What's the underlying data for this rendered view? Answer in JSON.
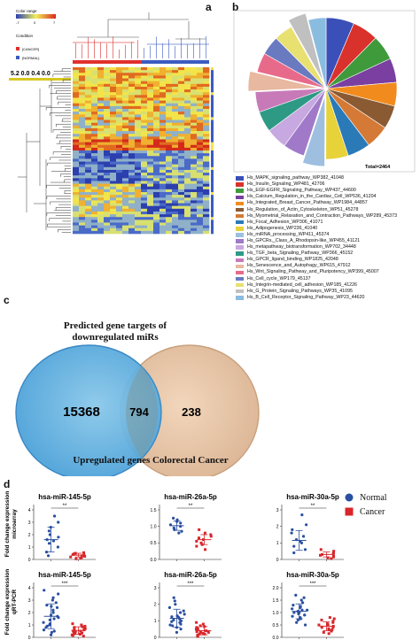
{
  "panels": {
    "a": {
      "letter": "a",
      "color_range_label": "Color range",
      "color_range_ticks": [
        "-7",
        "0",
        "7"
      ],
      "condition_label": "Condition",
      "condition_items": [
        {
          "label": "[CANCER]",
          "color": "#e0302c"
        },
        {
          "label": "[NORMAL]",
          "color": "#3a5bc0"
        }
      ],
      "scale_text": "5.2 0.0  0.4 0.0"
    },
    "b": {
      "letter": "b",
      "total_label": "Total=2464",
      "pathways": [
        {
          "label": "Hs_MAPK_signaling_pathway_WP382_41048",
          "color": "#3b4fb8"
        },
        {
          "label": "Hs_Insulin_Signaling_WP481_42706",
          "color": "#d9312b"
        },
        {
          "label": "Hs_EGF-EGFR_Signaling_Pathway_WP437_44600",
          "color": "#3f9a3c"
        },
        {
          "label": "Hs_Calcium_Regulation_in_the_Cardiac_Cell_WP536_41204",
          "color": "#7a3fa0"
        },
        {
          "label": "Hs_Integrated_Breast_Cancer_Pathway_WP1984_44857",
          "color": "#f28b1e"
        },
        {
          "label": "Hs_Regulation_of_Actin_Cytoskeleton_WP51_45278",
          "color": "#8a5a32"
        },
        {
          "label": "Hs_Myometrial_Relaxation_and_Contraction_Pathways_WP289_45373",
          "color": "#d47a36"
        },
        {
          "label": "Hs_Focal_Adhesion_WP306_41071",
          "color": "#2a7ab8"
        },
        {
          "label": "Hs_Adipogenesis_WP236_41040",
          "color": "#e7d23a"
        },
        {
          "label": "Hs_miRNA_processing_WP411_45374",
          "color": "#9fbfe0"
        },
        {
          "label": "Hs_GPCRs,_Class_A_Rhodopsin-like_WP455_41121",
          "color": "#a07ac8"
        },
        {
          "label": "Hs_metapathway_biotransformation_WP702_34448",
          "color": "#c8a8e0"
        },
        {
          "label": "Hs_TGF_beta_Signaling_Pathway_WP366_45152",
          "color": "#2e9a86"
        },
        {
          "label": "Hs_GPCR_ligand_binding_WP1825_42048",
          "color": "#c87ab8"
        },
        {
          "label": "Hs_Senescence_and_Autophagy_WP615_47912",
          "color": "#e8b8a0"
        },
        {
          "label": "Hs_Wnt_Signaling_Pathway_and_Pluripotency_WP399_45007",
          "color": "#e86a8a"
        },
        {
          "label": "Hs_Cell_cycle_WP179_45137",
          "color": "#6a7ac0"
        },
        {
          "label": "Hs_Integrin-mediated_cell_adhesion_WP185_41226",
          "color": "#e8e070"
        },
        {
          "label": "Hs_G_Protein_Signaling_Pathways_WP35_41095",
          "color": "#c0c0c0"
        },
        {
          "label": "Hs_B_Cell_Receptor_Signaling_Pathway_WP23_44620",
          "color": "#8abce0"
        }
      ]
    },
    "c": {
      "letter": "c",
      "left_title_line1": "Predicted gene targets of",
      "left_title_line2": "downregulated miRs",
      "bottom_title": "Upregulated genes Colorectal Cancer",
      "left_only": "15368",
      "overlap": "794",
      "right_only": "238"
    },
    "d": {
      "letter": "d",
      "legend": [
        {
          "label": "Normal",
          "color": "#2a4fa0"
        },
        {
          "label": "Cancer",
          "color": "#d8262a"
        }
      ],
      "row_labels": [
        {
          "line1": "Fold change expression",
          "line2": "microarray"
        },
        {
          "line1": "Fold change expression",
          "line2": "qRT-PCR"
        }
      ],
      "plots": [
        {
          "title": "hsa-miR-145-5p",
          "sig": "**",
          "yticks": [
            "0",
            "1",
            "2",
            "3",
            "4"
          ],
          "ymax": 4,
          "normal": [
            0.3,
            0.6,
            1.0,
            1.3,
            1.5,
            1.6,
            1.8,
            2.0,
            2.3,
            2.6,
            3.0,
            3.5
          ],
          "normal_mean": 1.6,
          "normal_sd": 1.0,
          "cancer": [
            0.05,
            0.1,
            0.15,
            0.2,
            0.25,
            0.3,
            0.35,
            0.4,
            0.45,
            0.5,
            0.55
          ],
          "cancer_mean": 0.35,
          "cancer_sd": 0.15
        },
        {
          "title": "hsa-miR-26a-5p",
          "sig": "**",
          "yticks": [
            "0.0",
            "0.5",
            "1.0",
            "1.5"
          ],
          "ymax": 1.5,
          "normal": [
            0.8,
            0.85,
            0.9,
            0.95,
            1.0,
            1.05,
            1.1,
            1.15,
            1.2,
            1.25
          ],
          "normal_mean": 1.02,
          "normal_sd": 0.14,
          "cancer": [
            0.3,
            0.4,
            0.45,
            0.5,
            0.55,
            0.6,
            0.65,
            0.7,
            0.75,
            0.8,
            0.9
          ],
          "cancer_mean": 0.6,
          "cancer_sd": 0.15
        },
        {
          "title": "hsa-miR-30a-5p",
          "sig": "**",
          "yticks": [
            "0",
            "1",
            "2",
            "3"
          ],
          "ymax": 3,
          "normal": [
            0.4,
            0.6,
            0.8,
            1.0,
            1.1,
            1.2,
            1.4,
            1.6,
            1.8,
            2.1,
            2.7
          ],
          "normal_mean": 1.15,
          "normal_sd": 0.6,
          "cancer": [
            0.05,
            0.1,
            0.15,
            0.2,
            0.25,
            0.3,
            0.35,
            0.4,
            0.5,
            0.6
          ],
          "cancer_mean": 0.3,
          "cancer_sd": 0.15
        },
        {
          "title": "hsa-miR-145-5p",
          "sig": "***",
          "yticks": [
            "0",
            "1",
            "2",
            "3",
            "4"
          ],
          "ymax": 4,
          "normal": [
            0.2,
            0.4,
            0.6,
            0.8,
            1.0,
            1.2,
            1.4,
            1.6,
            1.8,
            2.0,
            2.2,
            2.4,
            2.6,
            2.8,
            3.0,
            3.2,
            3.5,
            3.8,
            0.9,
            1.1,
            1.5,
            2.5,
            0.5,
            1.7
          ],
          "normal_mean": 1.7,
          "normal_sd": 1.0,
          "cancer": [
            0.1,
            0.15,
            0.2,
            0.25,
            0.3,
            0.35,
            0.4,
            0.45,
            0.5,
            0.55,
            0.6,
            0.65,
            0.7,
            0.75,
            0.8,
            0.85,
            0.9,
            1.0,
            1.1,
            0.3,
            0.5
          ],
          "cancer_mean": 0.55,
          "cancer_sd": 0.3
        },
        {
          "title": "hsa-miR-26a-5p",
          "sig": "***",
          "yticks": [
            "0",
            "1",
            "2",
            "3"
          ],
          "ymax": 3,
          "normal": [
            0.3,
            0.5,
            0.6,
            0.7,
            0.8,
            0.9,
            1.0,
            1.1,
            1.2,
            1.3,
            1.4,
            1.5,
            1.6,
            1.8,
            2.0,
            2.2,
            2.4,
            0.75,
            1.05,
            1.25,
            0.95
          ],
          "normal_mean": 1.15,
          "normal_sd": 0.55,
          "cancer": [
            0.05,
            0.1,
            0.15,
            0.2,
            0.25,
            0.3,
            0.35,
            0.4,
            0.45,
            0.5,
            0.55,
            0.6,
            0.65,
            0.7,
            0.8,
            0.9,
            0.2,
            0.3
          ],
          "cancer_mean": 0.4,
          "cancer_sd": 0.25
        },
        {
          "title": "hsa-miR-30a-5p",
          "sig": "***",
          "yticks": [
            "0.0",
            "0.5",
            "1.0",
            "1.5",
            "2.0"
          ],
          "ymax": 2,
          "normal": [
            0.5,
            0.6,
            0.7,
            0.8,
            0.85,
            0.9,
            0.95,
            1.0,
            1.05,
            1.1,
            1.15,
            1.2,
            1.25,
            1.3,
            1.4,
            1.5,
            1.6,
            1.7,
            0.75,
            1.0,
            1.1,
            0.9
          ],
          "normal_mean": 1.05,
          "normal_sd": 0.3,
          "cancer": [
            0.15,
            0.2,
            0.25,
            0.3,
            0.35,
            0.4,
            0.45,
            0.5,
            0.55,
            0.6,
            0.65,
            0.7,
            0.75,
            0.8,
            0.4,
            0.5,
            0.3
          ],
          "cancer_mean": 0.45,
          "cancer_sd": 0.18
        }
      ]
    }
  },
  "chart_data": [
    {
      "type": "pie",
      "title": "",
      "total": "Total=2464",
      "categories": [
        "Hs_MAPK_signaling_pathway_WP382_41048",
        "Hs_Insulin_Signaling_WP481_42706",
        "Hs_EGF-EGFR_Signaling_Pathway_WP437_44600",
        "Hs_Calcium_Regulation_in_the_Cardiac_Cell_WP536_41204",
        "Hs_Integrated_Breast_Cancer_Pathway_WP1984_44857",
        "Hs_Regulation_of_Actin_Cytoskeleton_WP51_45278",
        "Hs_Myometrial_Relaxation_and_Contraction_Pathways_WP289_45373",
        "Hs_Focal_Adhesion_WP306_41071",
        "Hs_Adipogenesis_WP236_41040",
        "Hs_miRNA_processing_WP411_45374",
        "Hs_GPCRs,_Class_A_Rhodopsin-like_WP455_41121",
        "Hs_metapathway_biotransformation_WP702_34448",
        "Hs_TGF_beta_Signaling_Pathway_WP366_45152",
        "Hs_GPCR_ligand_binding_WP1825_42048",
        "Hs_Senescence_and_Autophagy_WP615_47912",
        "Hs_Wnt_Signaling_Pathway_and_Pluripotency_WP399_45007",
        "Hs_Cell_cycle_WP179_45137",
        "Hs_Integrin-mediated_cell_adhesion_WP185_41226",
        "Hs_G_Protein_Signaling_Pathways_WP35_41095",
        "Hs_B_Cell_Receptor_Signaling_Pathway_WP23_44620"
      ],
      "values": [
        6.5,
        6.0,
        5.8,
        5.6,
        5.5,
        5.4,
        5.4,
        5.3,
        5.2,
        5.1,
        5.0,
        4.9,
        4.8,
        4.7,
        4.6,
        4.5,
        4.4,
        4.3,
        4.2,
        4.1
      ],
      "exploded": [
        18,
        9,
        14
      ],
      "legend": "bottom"
    }
  ]
}
